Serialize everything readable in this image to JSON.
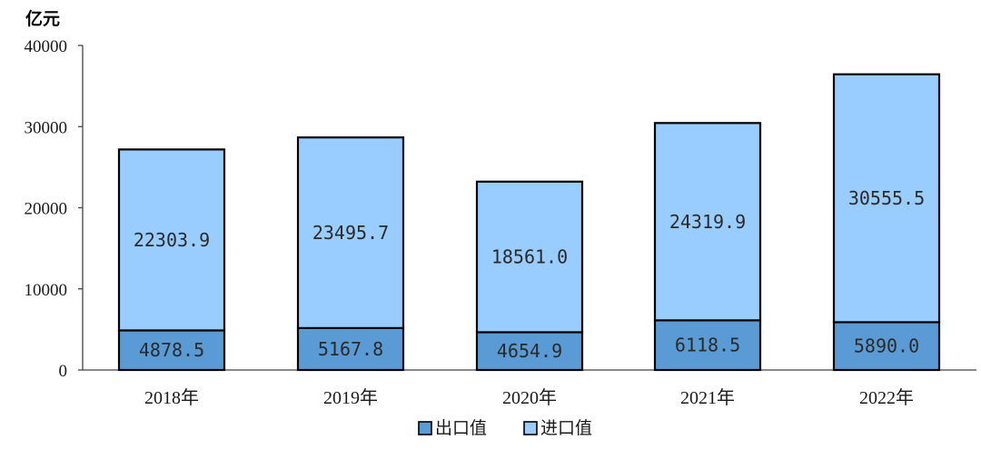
{
  "chart_data": {
    "type": "bar",
    "stacked": true,
    "unit_label": "亿元",
    "categories": [
      "2018年",
      "2019年",
      "2020年",
      "2021年",
      "2022年"
    ],
    "series": [
      {
        "name": "出口值",
        "values": [
          4878.5,
          5167.8,
          4654.9,
          6118.5,
          5890.0
        ],
        "labels": [
          "4878.5",
          "5167.8",
          "4654.9",
          "6118.5",
          "5890.0"
        ],
        "color": "#5b9bd5"
      },
      {
        "name": "进口值",
        "values": [
          22303.9,
          23495.7,
          18561.0,
          24319.9,
          30555.5
        ],
        "labels": [
          "22303.9",
          "23495.7",
          "18561.0",
          "24319.9",
          "30555.5"
        ],
        "color": "#99ccff"
      }
    ],
    "ylim": [
      0,
      40000
    ],
    "yticks": [
      "0",
      "10000",
      "20000",
      "30000",
      "40000"
    ],
    "grid": false,
    "legend_position": "bottom-center"
  }
}
